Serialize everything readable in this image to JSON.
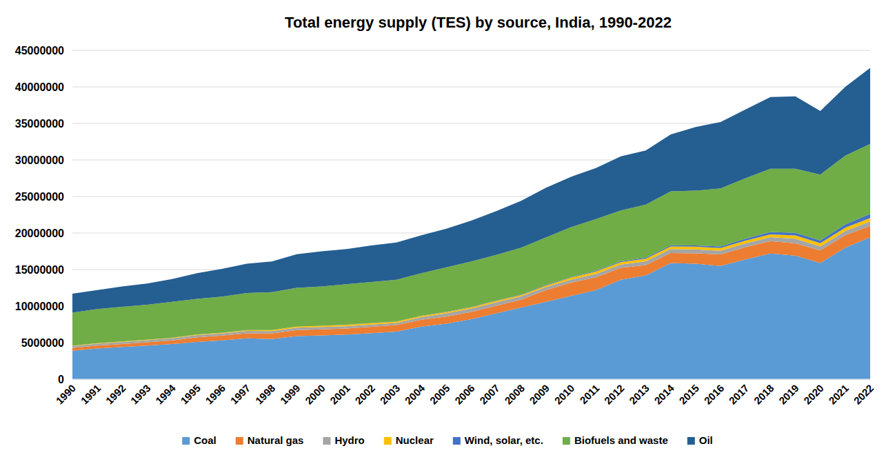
{
  "chart_data": {
    "type": "area",
    "title": "Total energy supply (TES) by source, India, 1990-2022",
    "stacked": true,
    "grid": true,
    "legend": "bottom",
    "categories": [
      "1990",
      "1991",
      "1992",
      "1993",
      "1994",
      "1995",
      "1996",
      "1997",
      "1998",
      "1999",
      "2000",
      "2001",
      "2002",
      "2003",
      "2004",
      "2005",
      "2006",
      "2007",
      "2008",
      "2009",
      "2010",
      "2011",
      "2012",
      "2013",
      "2014",
      "2015",
      "2016",
      "2017",
      "2018",
      "2019",
      "2020",
      "2021",
      "2022"
    ],
    "ylim": [
      0,
      45000000
    ],
    "yticks": [
      0,
      5000000,
      10000000,
      15000000,
      20000000,
      25000000,
      30000000,
      35000000,
      40000000,
      45000000
    ],
    "series": [
      {
        "name": "Coal",
        "color": "#5b9bd5",
        "values": [
          3900000,
          4200000,
          4400000,
          4600000,
          4800000,
          5100000,
          5300000,
          5600000,
          5500000,
          5900000,
          6000000,
          6100000,
          6300000,
          6500000,
          7200000,
          7600000,
          8200000,
          9000000,
          9800000,
          10600000,
          11400000,
          12200000,
          13600000,
          14200000,
          15900000,
          15800000,
          15500000,
          16400000,
          17200000,
          16900000,
          15900000,
          18000000,
          19400000
        ]
      },
      {
        "name": "Natural gas",
        "color": "#ed7d31",
        "values": [
          360000,
          390000,
          420000,
          450000,
          510000,
          620000,
          660000,
          680000,
          740000,
          810000,
          820000,
          840000,
          870000,
          900000,
          930000,
          970000,
          1000000,
          1040000,
          1080000,
          1600000,
          1810000,
          1750000,
          1630000,
          1420000,
          1370000,
          1420000,
          1570000,
          1660000,
          1690000,
          1690000,
          1710000,
          1690000,
          1580000
        ]
      },
      {
        "name": "Hydro",
        "color": "#a5a5a5",
        "values": [
          260000,
          270000,
          270000,
          270000,
          300000,
          310000,
          300000,
          320000,
          350000,
          350000,
          320000,
          310000,
          300000,
          300000,
          360000,
          440000,
          460000,
          490000,
          470000,
          420000,
          410000,
          470000,
          450000,
          520000,
          530000,
          530000,
          490000,
          520000,
          540000,
          620000,
          560000,
          580000,
          600000
        ]
      },
      {
        "name": "Nuclear",
        "color": "#ffc000",
        "values": [
          60000,
          70000,
          80000,
          70000,
          60000,
          80000,
          90000,
          100000,
          120000,
          130000,
          170000,
          190000,
          190000,
          180000,
          170000,
          170000,
          170000,
          170000,
          150000,
          190000,
          260000,
          330000,
          340000,
          340000,
          360000,
          380000,
          390000,
          380000,
          390000,
          460000,
          440000,
          460000,
          480000
        ]
      },
      {
        "name": "Wind, solar, etc.",
        "color": "#4472c4",
        "values": [
          0,
          0,
          0,
          0,
          0,
          10000,
          10000,
          10000,
          10000,
          10000,
          10000,
          20000,
          20000,
          30000,
          30000,
          40000,
          50000,
          60000,
          70000,
          80000,
          90000,
          110000,
          120000,
          140000,
          160000,
          170000,
          210000,
          260000,
          310000,
          350000,
          370000,
          440000,
          550000
        ]
      },
      {
        "name": "Biofuels and waste",
        "color": "#70ad47",
        "values": [
          4520000,
          4670000,
          4730000,
          4810000,
          4930000,
          4880000,
          4940000,
          5090000,
          5180000,
          5300000,
          5380000,
          5540000,
          5620000,
          5690000,
          5810000,
          6080000,
          6220000,
          6240000,
          6430000,
          6510000,
          6830000,
          7040000,
          6960000,
          7280000,
          7380000,
          7500000,
          7940000,
          8280000,
          8670000,
          8780000,
          9020000,
          9430000,
          9590000
        ]
      },
      {
        "name": "Oil",
        "color": "#255e91",
        "values": [
          2600000,
          2600000,
          2800000,
          2900000,
          3100000,
          3500000,
          3800000,
          4000000,
          4200000,
          4600000,
          4800000,
          4800000,
          5000000,
          5100000,
          5200000,
          5300000,
          5600000,
          6000000,
          6400000,
          6800000,
          6900000,
          7000000,
          7400000,
          7400000,
          7800000,
          8700000,
          9100000,
          9400000,
          9800000,
          9900000,
          8700000,
          9400000,
          10400000
        ]
      }
    ]
  }
}
